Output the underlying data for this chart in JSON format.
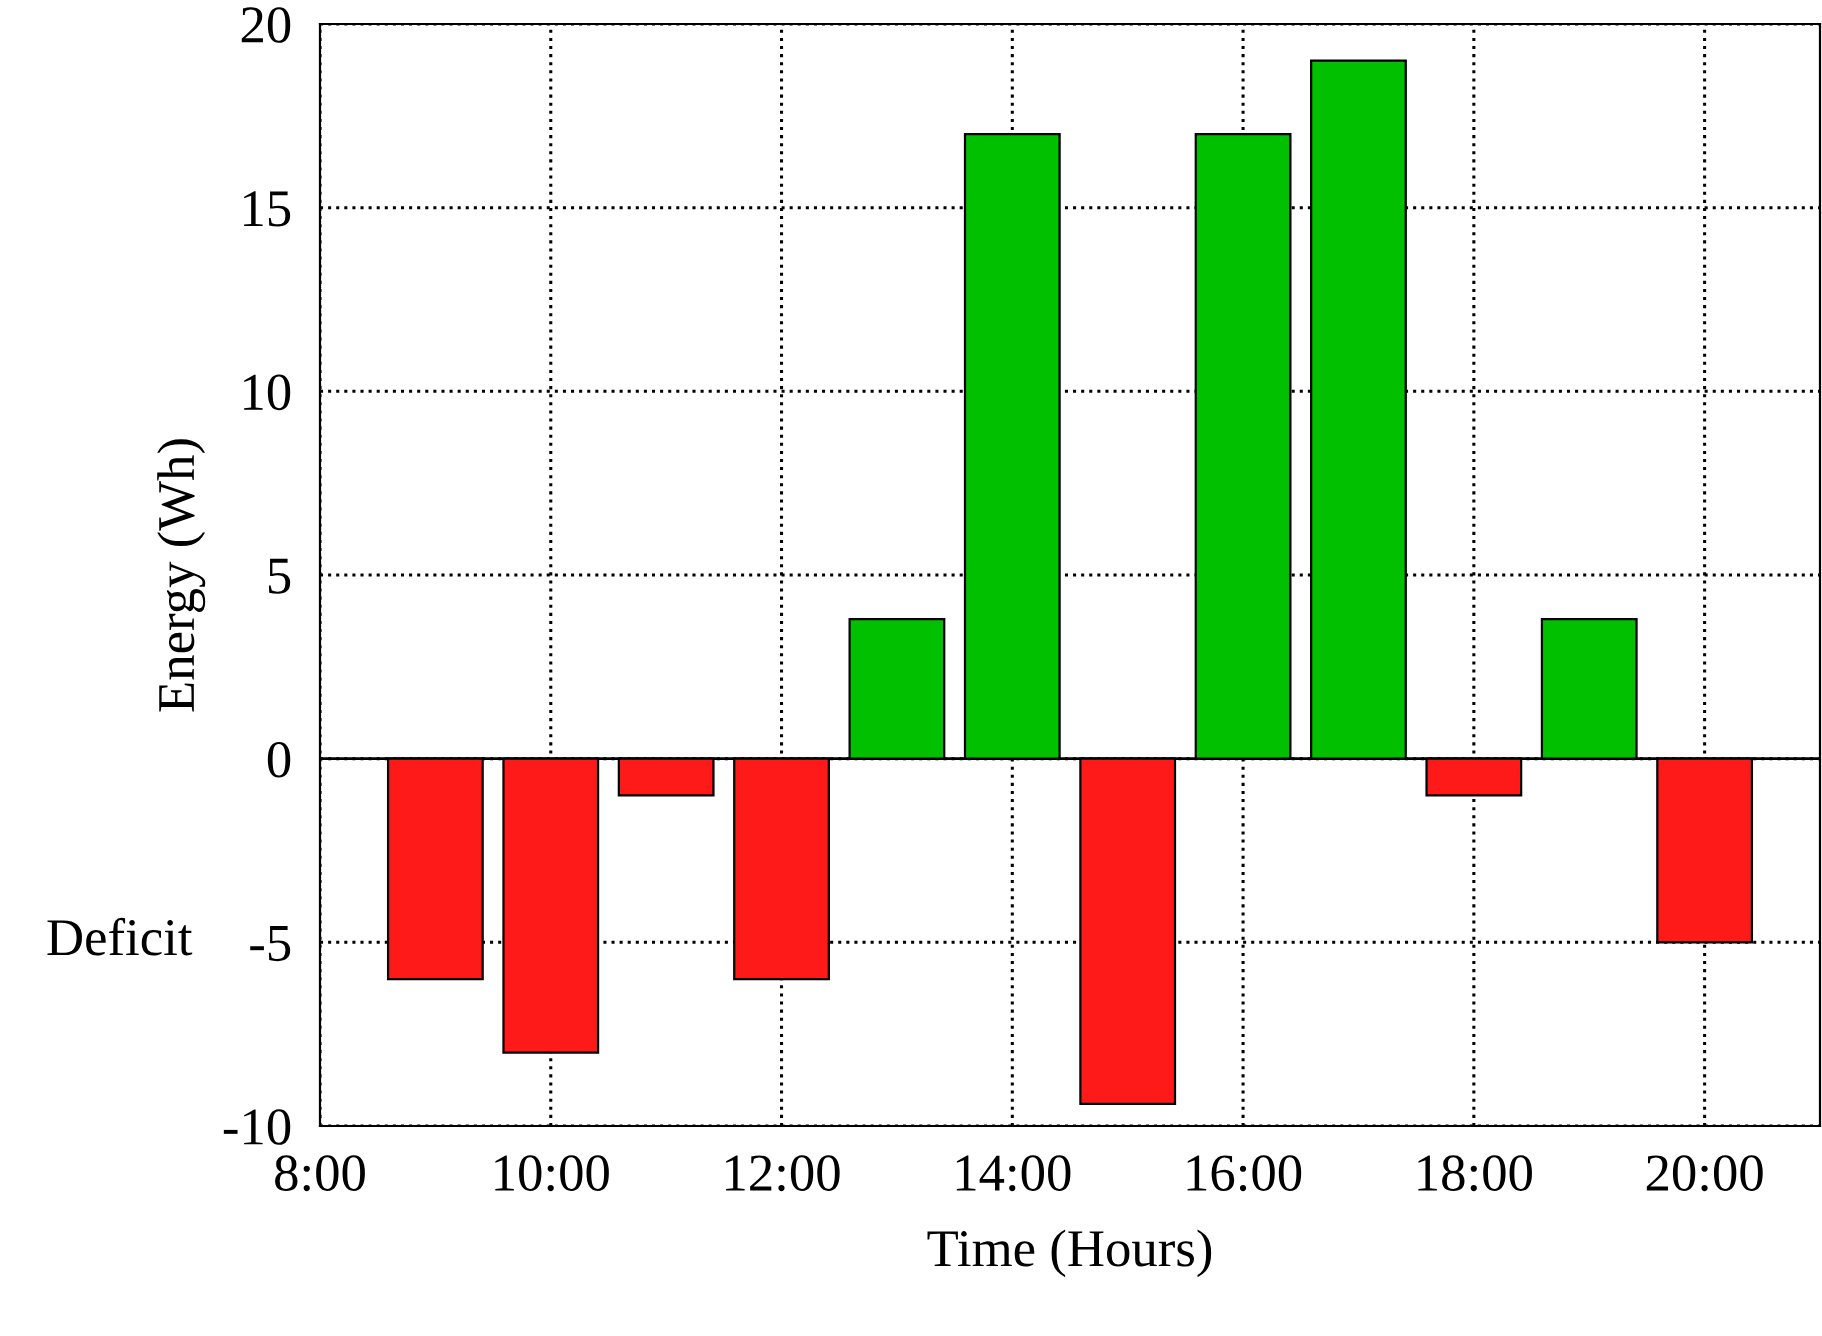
{
  "chart_data": {
    "type": "bar",
    "xlabel": "Time (Hours)",
    "ylabel": "Energy (Wh)",
    "x": [
      9,
      10,
      11,
      12,
      13,
      14,
      15,
      16,
      17,
      18,
      19,
      20
    ],
    "series": [
      {
        "values": [
          -6,
          -8,
          -1,
          -6,
          3.8,
          17,
          -9.4,
          17,
          19,
          -1,
          3.8,
          -5
        ],
        "colors": [
          "#ff1a1a",
          "#ff1a1a",
          "#ff1a1a",
          "#ff1a1a",
          "#00c000",
          "#00c000",
          "#ff1a1a",
          "#00c000",
          "#00c000",
          "#ff1a1a",
          "#00c000",
          "#ff1a1a"
        ]
      }
    ],
    "xlim": [
      8,
      21
    ],
    "xticks": [
      {
        "value": 8,
        "label": "8:00"
      },
      {
        "value": 10,
        "label": "10:00"
      },
      {
        "value": 12,
        "label": "12:00"
      },
      {
        "value": 14,
        "label": "14:00"
      },
      {
        "value": 16,
        "label": "16:00"
      },
      {
        "value": 18,
        "label": "18:00"
      },
      {
        "value": 20,
        "label": "20:00"
      }
    ],
    "ylim": [
      -10,
      20
    ],
    "yticks": [
      -10,
      -5,
      0,
      5,
      10,
      15,
      20
    ],
    "ref_lines": [
      {
        "axis": "y",
        "value": 0,
        "color": "#000000",
        "line_style": "solid"
      }
    ],
    "annotations": [
      "Deficit"
    ],
    "grid": true,
    "line_style": "dotted"
  }
}
